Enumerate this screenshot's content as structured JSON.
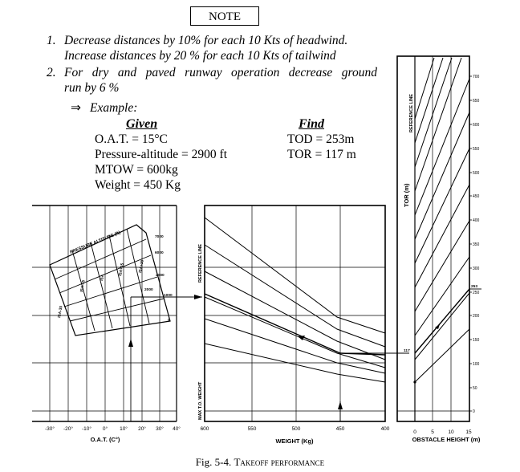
{
  "note_title": "NOTE",
  "notes": [
    {
      "num": "1.",
      "line1": "Decrease distances by 10% for each 10 Kts of headwind.",
      "line2": "Increase distances by  20 % for each 10 Kts of tailwind"
    },
    {
      "num": "2.",
      "line1": "For dry and paved runway operation decrease ground",
      "line2": "run by 6 %"
    }
  ],
  "example_arrow": "⇒",
  "example_label": "Example:",
  "given": {
    "header": "Given",
    "lines": [
      "O.A.T. = 15°C",
      "Pressure-altitude = 2900 ft",
      "MTOW = 600kg",
      "Weight = 450 Kg"
    ]
  },
  "find": {
    "header": "Find",
    "lines": [
      "TOD = 253m",
      "TOR = 117 m"
    ]
  },
  "caption_prefix": "Fig. 5-4. ",
  "caption_text": "Takeoff performance",
  "chart_data": {
    "type": "line",
    "title": "Takeoff performance",
    "panels": [
      {
        "name": "oat",
        "xlabel": "O.A.T.  (C°)",
        "x_ticks": [
          "-30°",
          "-20°",
          "-10°",
          "0°",
          "10°",
          "20°",
          "30°",
          "40°"
        ],
        "x_range": [
          -30,
          40
        ],
        "grid_label": "PRESSURE ALTITUDE (ft)",
        "altitude_labels": [
          "7000",
          "6000",
          "4000",
          "2000",
          "1000",
          "0"
        ],
        "isa_labels": [
          "ISA-30",
          "ISA-15",
          "ISA",
          "ISA+15",
          "ISA+30"
        ],
        "example_oat": 15
      },
      {
        "name": "weight",
        "xlabel": "WEIGHT (Kg)",
        "x_ticks": [
          "600",
          "550",
          "500",
          "450",
          "400"
        ],
        "x_range": [
          600,
          400
        ],
        "reference_label": "REFERENCE LINE",
        "max_weight_label": "MAX T.O. WEIGHT",
        "example_weight": 450
      },
      {
        "name": "obstacle",
        "xlabel": "OBSTACLE HEIGHT (m)",
        "x_ticks": [
          "0",
          "5",
          "10",
          "15"
        ],
        "x_range": [
          0,
          15
        ],
        "ylabel": "TOR  (m)",
        "reference_label": "REFERENCE LINE",
        "y_ticks": [
          "0",
          "50",
          "100",
          "150",
          "200",
          "250",
          "300",
          "350",
          "400",
          "450",
          "500",
          "550",
          "600",
          "650",
          "700"
        ],
        "y_range": [
          0,
          700
        ],
        "marked_values": [
          "117",
          "253"
        ],
        "result_tor": 117,
        "result_tod": 253
      }
    ]
  }
}
